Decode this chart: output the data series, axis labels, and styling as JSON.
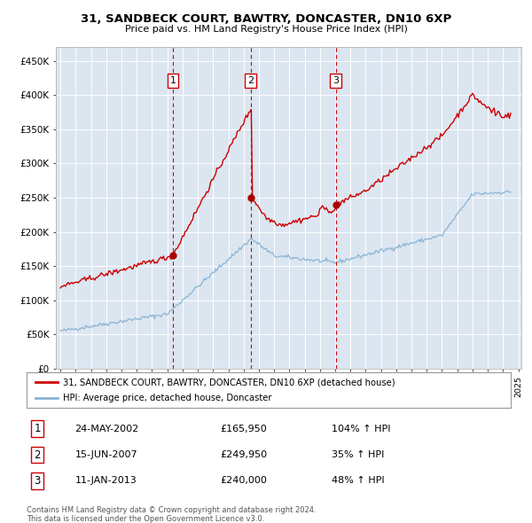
{
  "title": "31, SANDBECK COURT, BAWTRY, DONCASTER, DN10 6XP",
  "subtitle": "Price paid vs. HM Land Registry's House Price Index (HPI)",
  "ylim": [
    0,
    470000
  ],
  "yticks": [
    0,
    50000,
    100000,
    150000,
    200000,
    250000,
    300000,
    350000,
    400000,
    450000
  ],
  "ytick_labels": [
    "£0",
    "£50K",
    "£100K",
    "£150K",
    "£200K",
    "£250K",
    "£300K",
    "£350K",
    "£400K",
    "£450K"
  ],
  "plot_bg_color": "#dce6f1",
  "grid_color": "#ffffff",
  "house_color": "#cc0000",
  "hpi_color": "#8ab4d4",
  "sales": [
    {
      "date_num": 2002.38,
      "price": 165950,
      "label": "1"
    },
    {
      "date_num": 2007.46,
      "price": 249950,
      "label": "2"
    },
    {
      "date_num": 2013.03,
      "price": 240000,
      "label": "3"
    }
  ],
  "sale_info": [
    {
      "num": "1",
      "date": "24-MAY-2002",
      "price": "£165,950",
      "pct": "104% ↑ HPI"
    },
    {
      "num": "2",
      "date": "15-JUN-2007",
      "price": "£249,950",
      "pct": "35% ↑ HPI"
    },
    {
      "num": "3",
      "date": "11-JAN-2013",
      "price": "£240,000",
      "pct": "48% ↑ HPI"
    }
  ],
  "legend_house": "31, SANDBECK COURT, BAWTRY, DONCASTER, DN10 6XP (detached house)",
  "legend_hpi": "HPI: Average price, detached house, Doncaster",
  "footer1": "Contains HM Land Registry data © Crown copyright and database right 2024.",
  "footer2": "This data is licensed under the Open Government Licence v3.0."
}
